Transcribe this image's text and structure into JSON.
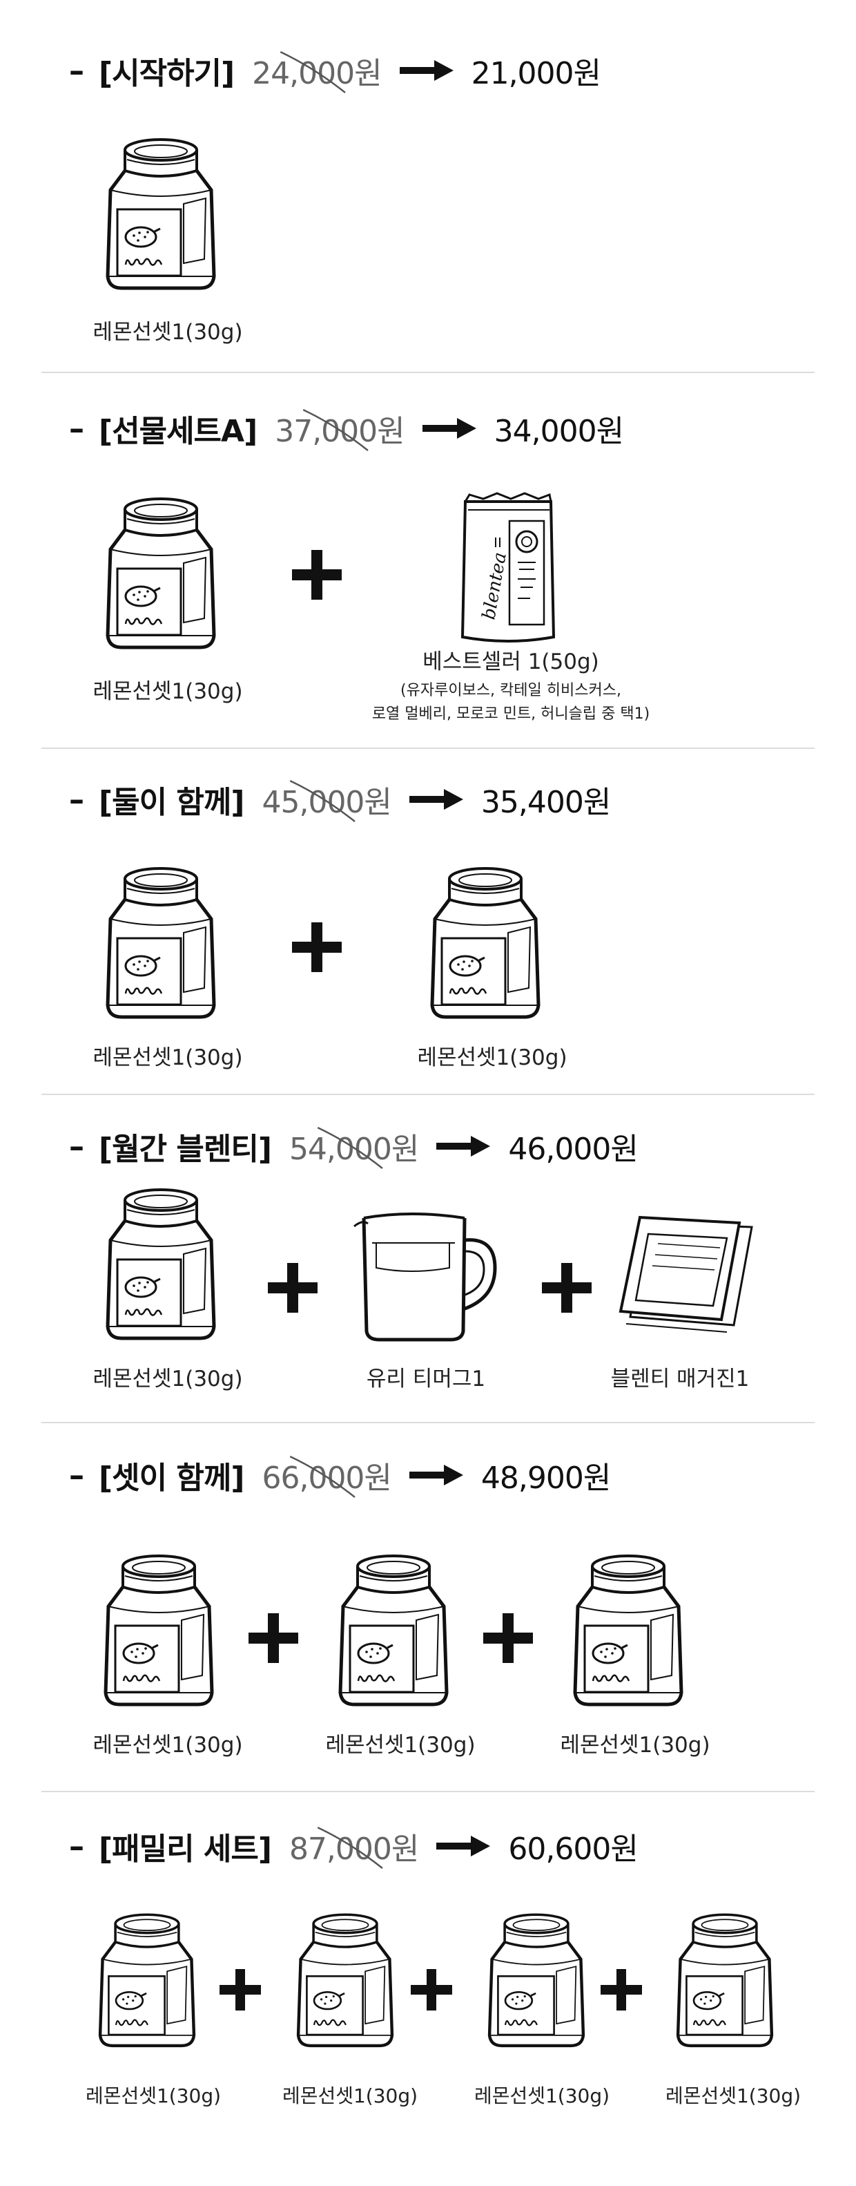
{
  "sections": [
    {
      "name": "[시작하기]",
      "old_price": "24,000원",
      "new_price": "21,000원",
      "items": [
        {
          "label": "레몬선셋1(30g)"
        }
      ]
    },
    {
      "name": "[선물세트A]",
      "old_price": "37,000원",
      "new_price": "34,000원",
      "items": [
        {
          "label": "레몬선셋1(30g)"
        },
        {
          "label": "베스트셀러 1(50g)",
          "note_line1": "(유자루이보스, 칵테일 히비스커스,",
          "note_line2": "로열 멀베리, 모로코 민트, 허니슬립 중 택1)",
          "brand": "blentea"
        }
      ]
    },
    {
      "name": "[둘이 함께]",
      "old_price": "45,000원",
      "new_price": "35,400원",
      "items": [
        {
          "label": "레몬선셋1(30g)"
        },
        {
          "label": "레몬선셋1(30g)"
        }
      ]
    },
    {
      "name": "[월간 블렌티]",
      "old_price": "54,000원",
      "new_price": "46,000원",
      "items": [
        {
          "label": "레몬선셋1(30g)"
        },
        {
          "label": "유리 티머그1"
        },
        {
          "label": "블렌티 매거진1"
        }
      ]
    },
    {
      "name": "[셋이 함께]",
      "old_price": "66,000원",
      "new_price": "48,900원",
      "items": [
        {
          "label": "레몬선셋1(30g)"
        },
        {
          "label": "레몬선셋1(30g)"
        },
        {
          "label": "레몬선셋1(30g)"
        }
      ]
    },
    {
      "name": "[패밀리 세트]",
      "old_price": "87,000원",
      "new_price": "60,600원",
      "items": [
        {
          "label": "레몬선셋1(30g)"
        },
        {
          "label": "레몬선셋1(30g)"
        },
        {
          "label": "레몬선셋1(30g)"
        },
        {
          "label": "레몬선셋1(30g)"
        }
      ]
    }
  ],
  "jar_label": "lemon"
}
